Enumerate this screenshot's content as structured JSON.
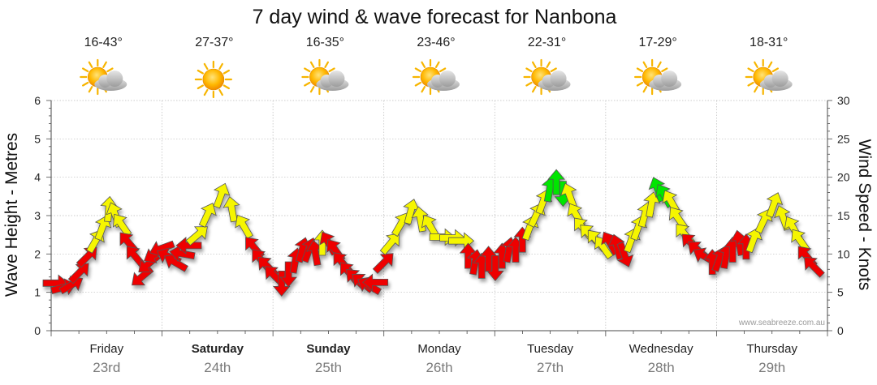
{
  "chart_data": {
    "type": "wind-wave-forecast",
    "title": "7 day wind & wave forecast for Nanbona",
    "ylabel_left": "Wave Height - Metres",
    "ylabel_right": "Wind Speed - Knots",
    "ylim_left": [
      0,
      6
    ],
    "ylim_right": [
      0,
      30
    ],
    "yticks_left": [
      "0",
      "1",
      "2",
      "3",
      "4",
      "5",
      "6"
    ],
    "yticks_right": [
      "0",
      "5",
      "10",
      "15",
      "20",
      "25",
      "30"
    ],
    "credit": "www.seabreeze.com.au",
    "colors": {
      "light": "#f5f500",
      "strong": "#ee0000",
      "fresh": "#00e600",
      "stroke": "#555555",
      "grid": "#bbbbbb",
      "axis": "#4a4a4a",
      "sun": "#f7b500",
      "cloud": "#b0b0b0"
    },
    "days": [
      {
        "name": "Friday",
        "date": "23rd",
        "temp": "16-43°",
        "icon": "partly-cloudy-icon",
        "bold": false
      },
      {
        "name": "Saturday",
        "date": "24th",
        "temp": "27-37°",
        "icon": "sunny-icon",
        "bold": true
      },
      {
        "name": "Sunday",
        "date": "25th",
        "temp": "16-35°",
        "icon": "partly-cloudy-icon",
        "bold": true
      },
      {
        "name": "Monday",
        "date": "26th",
        "temp": "23-46°",
        "icon": "partly-cloudy-icon",
        "bold": false
      },
      {
        "name": "Tuesday",
        "date": "27th",
        "temp": "22-31°",
        "icon": "partly-cloudy-icon",
        "bold": false
      },
      {
        "name": "Wednesday",
        "date": "28th",
        "temp": "17-29°",
        "icon": "partly-cloudy-icon",
        "bold": false
      },
      {
        "name": "Thursday",
        "date": "29th",
        "temp": "18-31°",
        "icon": "partly-cloudy-icon",
        "bold": false
      }
    ],
    "wind_series": [
      {
        "t": 0.0,
        "knots": 6.2,
        "dir": 90,
        "color": "red"
      },
      {
        "t": 0.12,
        "knots": 5.6,
        "dir": 75,
        "color": "red"
      },
      {
        "t": 0.24,
        "knots": 5.9,
        "dir": 60,
        "color": "red"
      },
      {
        "t": 0.36,
        "knots": 7.5,
        "dir": 45,
        "color": "red"
      },
      {
        "t": 0.48,
        "knots": 9.6,
        "dir": 45,
        "color": "red"
      },
      {
        "t": 0.6,
        "knots": 11.6,
        "dir": 30,
        "color": "yellow"
      },
      {
        "t": 0.7,
        "knots": 13.3,
        "dir": 20,
        "color": "yellow"
      },
      {
        "t": 0.8,
        "knots": 15.7,
        "dir": 5,
        "color": "yellow"
      },
      {
        "t": 0.9,
        "knots": 15.0,
        "dir": 340,
        "color": "yellow"
      },
      {
        "t": 1.0,
        "knots": 13.7,
        "dir": 325,
        "color": "yellow"
      },
      {
        "t": 1.1,
        "knots": 11.4,
        "dir": 320,
        "color": "red"
      },
      {
        "t": 1.2,
        "knots": 9.6,
        "dir": 320,
        "color": "red"
      },
      {
        "t": 1.3,
        "knots": 7.1,
        "dir": 230,
        "color": "red"
      },
      {
        "t": 1.4,
        "knots": 8.8,
        "dir": 230,
        "color": "red"
      },
      {
        "t": 1.5,
        "knots": 10.0,
        "dir": 240,
        "color": "red"
      },
      {
        "t": 1.6,
        "knots": 10.8,
        "dir": 250,
        "color": "red"
      },
      {
        "t": 1.7,
        "knots": 9.6,
        "dir": 295,
        "color": "red"
      },
      {
        "t": 1.8,
        "knots": 8.8,
        "dir": 300,
        "color": "red"
      },
      {
        "t": 1.9,
        "knots": 10.0,
        "dir": 280,
        "color": "red"
      },
      {
        "t": 2.0,
        "knots": 11.1,
        "dir": 270,
        "color": "red"
      },
      {
        "t": 2.1,
        "knots": 12.4,
        "dir": 50,
        "color": "yellow"
      },
      {
        "t": 2.25,
        "knots": 15.0,
        "dir": 25,
        "color": "yellow"
      },
      {
        "t": 2.45,
        "knots": 17.5,
        "dir": 20,
        "color": "yellow"
      },
      {
        "t": 2.62,
        "knots": 15.7,
        "dir": 350,
        "color": "yellow"
      },
      {
        "t": 2.8,
        "knots": 13.5,
        "dir": 330,
        "color": "yellow"
      },
      {
        "t": 2.95,
        "knots": 10.8,
        "dir": 320,
        "color": "red"
      },
      {
        "t": 3.05,
        "knots": 9.2,
        "dir": 320,
        "color": "red"
      },
      {
        "t": 3.15,
        "knots": 8.3,
        "dir": 315,
        "color": "red"
      },
      {
        "t": 3.25,
        "knots": 7.1,
        "dir": 315,
        "color": "red"
      },
      {
        "t": 3.35,
        "knots": 6.3,
        "dir": 180,
        "color": "red"
      },
      {
        "t": 3.45,
        "knots": 7.5,
        "dir": 180,
        "color": "red"
      },
      {
        "t": 3.55,
        "knots": 9.0,
        "dir": 10,
        "color": "red"
      },
      {
        "t": 3.65,
        "knots": 10.4,
        "dir": 15,
        "color": "red"
      },
      {
        "t": 3.75,
        "knots": 10.4,
        "dir": 20,
        "color": "red"
      },
      {
        "t": 3.85,
        "knots": 10.0,
        "dir": 350,
        "color": "red"
      },
      {
        "t": 3.95,
        "knots": 11.3,
        "dir": 0,
        "color": "yellow"
      },
      {
        "t": 4.05,
        "knots": 11.3,
        "dir": 330,
        "color": "red"
      },
      {
        "t": 4.15,
        "knots": 10.4,
        "dir": 325,
        "color": "red"
      },
      {
        "t": 4.25,
        "knots": 8.8,
        "dir": 320,
        "color": "red"
      },
      {
        "t": 4.35,
        "knots": 7.5,
        "dir": 320,
        "color": "red"
      },
      {
        "t": 4.45,
        "knots": 6.7,
        "dir": 315,
        "color": "red"
      },
      {
        "t": 4.55,
        "knots": 6.2,
        "dir": 310,
        "color": "red"
      },
      {
        "t": 4.65,
        "knots": 5.8,
        "dir": 300,
        "color": "red"
      },
      {
        "t": 4.75,
        "knots": 6.3,
        "dir": 270,
        "color": "red"
      },
      {
        "t": 4.85,
        "knots": 8.8,
        "dir": 45,
        "color": "red"
      },
      {
        "t": 4.95,
        "knots": 11.3,
        "dir": 40,
        "color": "yellow"
      },
      {
        "t": 5.1,
        "knots": 13.8,
        "dir": 30,
        "color": "yellow"
      },
      {
        "t": 5.25,
        "knots": 15.4,
        "dir": 15,
        "color": "yellow"
      },
      {
        "t": 5.4,
        "knots": 14.4,
        "dir": 350,
        "color": "yellow"
      },
      {
        "t": 5.55,
        "knots": 13.5,
        "dir": 330,
        "color": "yellow"
      },
      {
        "t": 5.7,
        "knots": 12.2,
        "dir": 90,
        "color": "yellow"
      },
      {
        "t": 5.85,
        "knots": 12.1,
        "dir": 90,
        "color": "yellow"
      },
      {
        "t": 5.98,
        "knots": 11.7,
        "dir": 90,
        "color": "yellow"
      },
      {
        "t": 6.1,
        "knots": 9.6,
        "dir": 0,
        "color": "red"
      },
      {
        "t": 6.2,
        "knots": 8.8,
        "dir": 10,
        "color": "red"
      },
      {
        "t": 6.3,
        "knots": 8.3,
        "dir": 0,
        "color": "red"
      },
      {
        "t": 6.4,
        "knots": 9.2,
        "dir": 0,
        "color": "red"
      },
      {
        "t": 6.5,
        "knots": 8.3,
        "dir": 180,
        "color": "red"
      },
      {
        "t": 6.6,
        "knots": 9.6,
        "dir": 0,
        "color": "red"
      },
      {
        "t": 6.7,
        "knots": 10.4,
        "dir": 10,
        "color": "red"
      },
      {
        "t": 6.8,
        "knots": 10.4,
        "dir": 0,
        "color": "red"
      },
      {
        "t": 6.9,
        "knots": 11.7,
        "dir": 0,
        "color": "red"
      },
      {
        "t": 7.0,
        "knots": 13.3,
        "dir": 20,
        "color": "yellow"
      },
      {
        "t": 7.1,
        "knots": 15.0,
        "dir": 25,
        "color": "yellow"
      },
      {
        "t": 7.2,
        "knots": 16.7,
        "dir": 20,
        "color": "yellow"
      },
      {
        "t": 7.3,
        "knots": 18.3,
        "dir": 10,
        "color": "green"
      },
      {
        "t": 7.4,
        "knots": 19.2,
        "dir": 0,
        "color": "green"
      },
      {
        "t": 7.5,
        "knots": 18.0,
        "dir": 180,
        "color": "green"
      },
      {
        "t": 7.6,
        "knots": 17.5,
        "dir": 340,
        "color": "yellow"
      },
      {
        "t": 7.7,
        "knots": 15.0,
        "dir": 330,
        "color": "yellow"
      },
      {
        "t": 7.8,
        "knots": 13.3,
        "dir": 320,
        "color": "yellow"
      },
      {
        "t": 7.9,
        "knots": 12.5,
        "dir": 315,
        "color": "yellow"
      },
      {
        "t": 8.0,
        "knots": 11.7,
        "dir": 320,
        "color": "yellow"
      },
      {
        "t": 8.1,
        "knots": 10.8,
        "dir": 325,
        "color": "yellow"
      },
      {
        "t": 8.2,
        "knots": 11.3,
        "dir": 330,
        "color": "red"
      },
      {
        "t": 8.3,
        "knots": 10.8,
        "dir": 345,
        "color": "red"
      },
      {
        "t": 8.4,
        "knots": 10.0,
        "dir": 160,
        "color": "red"
      },
      {
        "t": 8.5,
        "knots": 11.7,
        "dir": 20,
        "color": "yellow"
      },
      {
        "t": 8.6,
        "knots": 13.3,
        "dir": 20,
        "color": "yellow"
      },
      {
        "t": 8.7,
        "knots": 15.0,
        "dir": 15,
        "color": "yellow"
      },
      {
        "t": 8.8,
        "knots": 16.3,
        "dir": 10,
        "color": "yellow"
      },
      {
        "t": 8.9,
        "knots": 18.3,
        "dir": 340,
        "color": "green"
      },
      {
        "t": 9.0,
        "knots": 17.5,
        "dir": 330,
        "color": "green"
      },
      {
        "t": 9.1,
        "knots": 16.7,
        "dir": 330,
        "color": "yellow"
      },
      {
        "t": 9.2,
        "knots": 14.6,
        "dir": 325,
        "color": "yellow"
      },
      {
        "t": 9.3,
        "knots": 12.5,
        "dir": 320,
        "color": "yellow"
      },
      {
        "t": 9.4,
        "knots": 11.3,
        "dir": 315,
        "color": "red"
      },
      {
        "t": 9.5,
        "knots": 10.4,
        "dir": 310,
        "color": "red"
      },
      {
        "t": 9.6,
        "knots": 9.6,
        "dir": 300,
        "color": "red"
      },
      {
        "t": 9.7,
        "knots": 8.8,
        "dir": 0,
        "color": "red"
      },
      {
        "t": 9.8,
        "knots": 9.2,
        "dir": 20,
        "color": "red"
      },
      {
        "t": 9.9,
        "knots": 9.6,
        "dir": 10,
        "color": "red"
      },
      {
        "t": 10.0,
        "knots": 10.4,
        "dir": 0,
        "color": "red"
      },
      {
        "t": 10.1,
        "knots": 11.3,
        "dir": 350,
        "color": "red"
      },
      {
        "t": 10.2,
        "knots": 10.8,
        "dir": 0,
        "color": "red"
      },
      {
        "t": 10.3,
        "knots": 11.7,
        "dir": 20,
        "color": "yellow"
      },
      {
        "t": 10.45,
        "knots": 14.2,
        "dir": 25,
        "color": "yellow"
      },
      {
        "t": 10.6,
        "knots": 16.3,
        "dir": 20,
        "color": "yellow"
      },
      {
        "t": 10.75,
        "knots": 14.6,
        "dir": 340,
        "color": "yellow"
      },
      {
        "t": 10.9,
        "knots": 13.3,
        "dir": 330,
        "color": "yellow"
      },
      {
        "t": 11.0,
        "knots": 11.7,
        "dir": 325,
        "color": "yellow"
      },
      {
        "t": 11.1,
        "knots": 9.6,
        "dir": 320,
        "color": "red"
      },
      {
        "t": 11.2,
        "knots": 8.3,
        "dir": 315,
        "color": "red"
      }
    ]
  }
}
